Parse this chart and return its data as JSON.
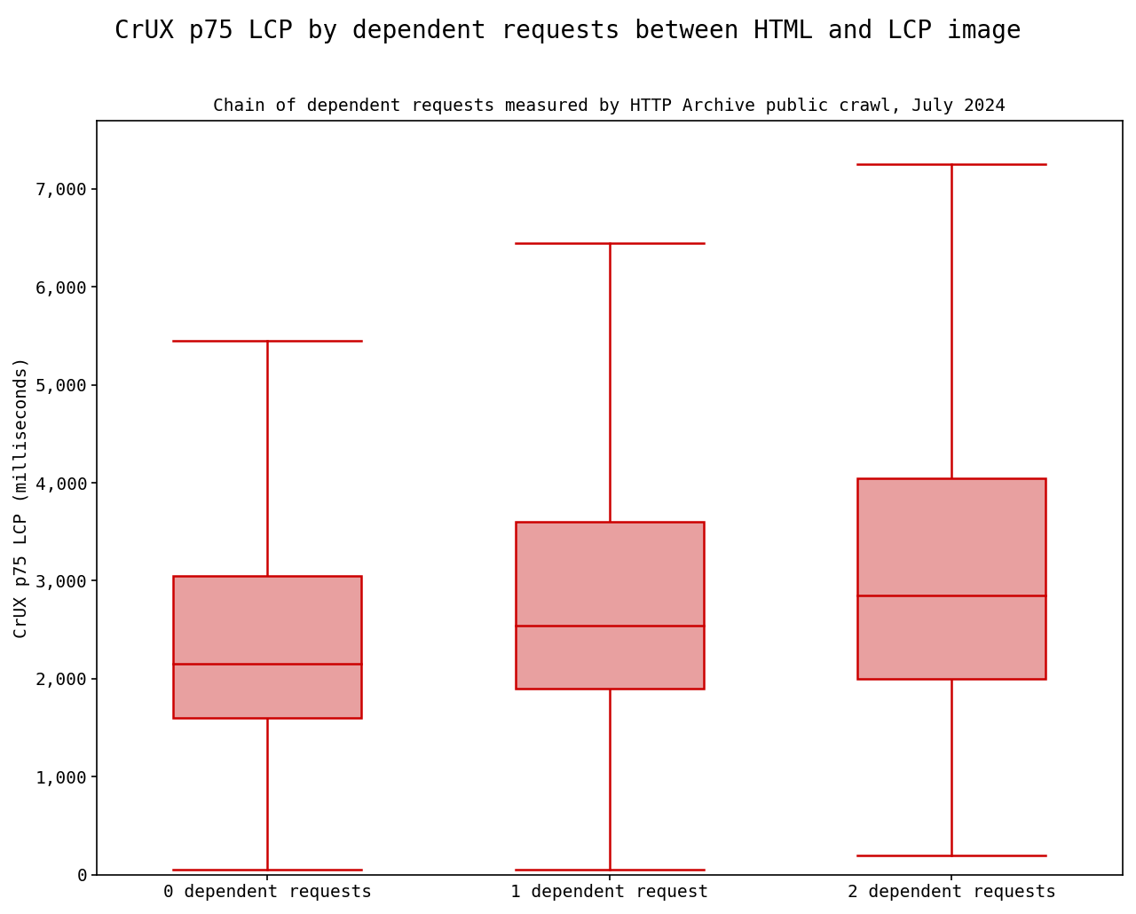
{
  "title": "CrUX p75 LCP by dependent requests between HTML and LCP image",
  "subtitle": "Chain of dependent requests measured by HTTP Archive public crawl, July 2024",
  "ylabel": "CrUX p75 LCP (milliseconds)",
  "categories": [
    "0 dependent requests",
    "1 dependent request",
    "2 dependent requests"
  ],
  "boxplots": [
    {
      "whisker_low": 50,
      "q1": 1600,
      "median": 2150,
      "q3": 3050,
      "whisker_high": 5450
    },
    {
      "whisker_low": 50,
      "q1": 1900,
      "median": 2540,
      "q3": 3600,
      "whisker_high": 6450
    },
    {
      "whisker_low": 200,
      "q1": 2000,
      "median": 2850,
      "q3": 4050,
      "whisker_high": 7250
    }
  ],
  "box_facecolor": "#e8a0a0",
  "box_edgecolor": "#cc0000",
  "median_color": "#cc0000",
  "whisker_color": "#cc0000",
  "cap_color": "#cc0000",
  "ylim": [
    0,
    7700
  ],
  "yticks": [
    0,
    1000,
    2000,
    3000,
    4000,
    5000,
    6000,
    7000
  ],
  "ytick_labels": [
    "0",
    "1,000",
    "2,000",
    "3,000",
    "4,000",
    "5,000",
    "6,000",
    "7,000"
  ],
  "box_width": 0.55,
  "linewidth": 1.8,
  "title_fontsize": 20,
  "subtitle_fontsize": 14,
  "tick_fontsize": 14,
  "ylabel_fontsize": 14,
  "background_color": "#ffffff",
  "title_font": "monospace",
  "subtitle_font": "monospace",
  "tick_font": "monospace",
  "ylabel_font": "monospace"
}
